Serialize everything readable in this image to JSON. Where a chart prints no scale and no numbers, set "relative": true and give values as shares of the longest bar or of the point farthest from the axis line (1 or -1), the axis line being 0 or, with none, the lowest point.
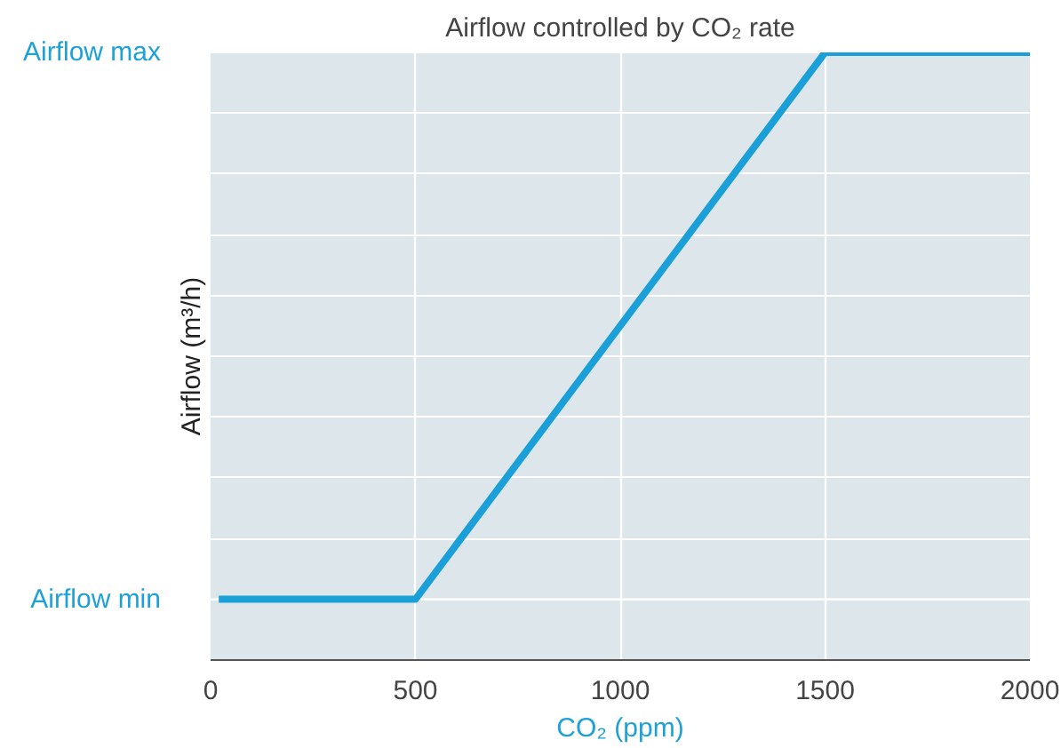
{
  "chart_data": {
    "type": "line",
    "title": "Airflow controlled by CO₂ rate",
    "xlabel": "CO₂ (ppm)",
    "ylabel": "Airflow (m³/h)",
    "x": [
      20,
      500,
      1500,
      2000
    ],
    "series": [
      {
        "color": "#1a9fd9",
        "values": [
          0.1,
          0.1,
          1,
          1
        ]
      }
    ],
    "relative": true,
    "xlim": [
      0,
      2000
    ],
    "xticks": [
      0,
      500,
      1000,
      1500,
      2000
    ],
    "ref_lines": [
      {
        "axis": "y",
        "value": 0.1,
        "label": "Airflow min",
        "color": "#ffffff"
      },
      {
        "axis": "y",
        "value": 1,
        "label": "Airflow max",
        "color": "#ffffff"
      }
    ],
    "grid": true,
    "line_style": "solid",
    "marker": "none"
  }
}
